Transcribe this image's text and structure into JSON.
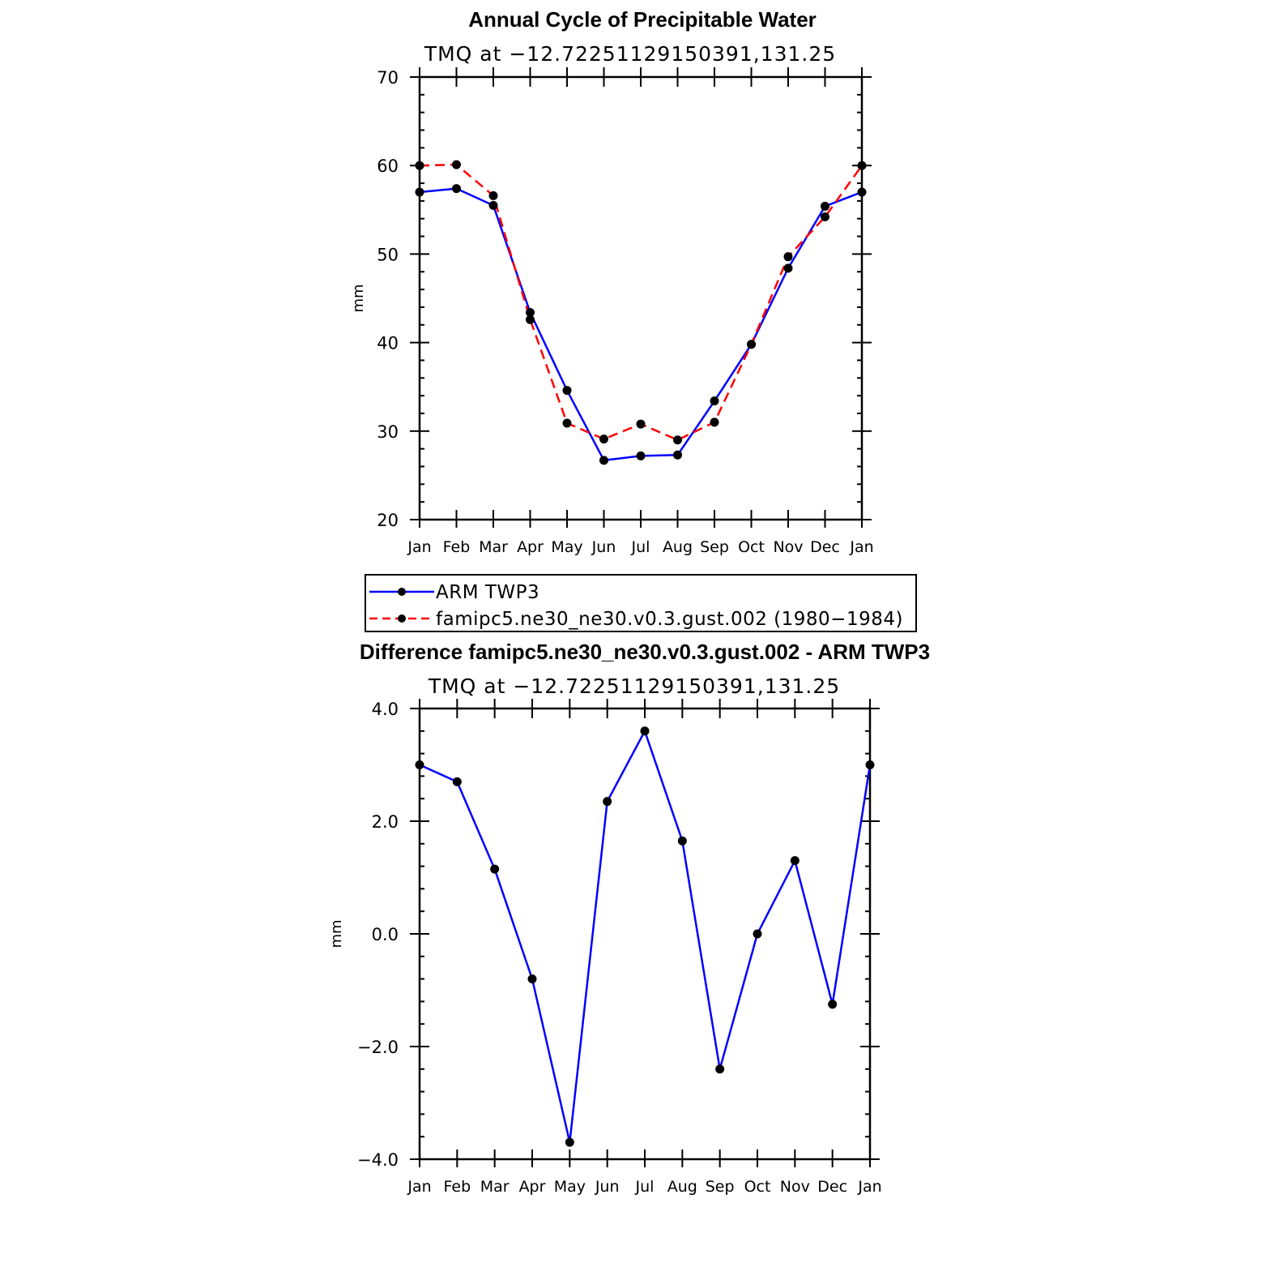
{
  "top": {
    "title": "Annual Cycle of Precipitable Water",
    "subtitle": "TMQ at −12.72251129150391,131.25",
    "ylabel": "mm"
  },
  "bottom": {
    "title": "Difference famipc5.ne30_ne30.v0.3.gust.002 - ARM TWP3",
    "subtitle": "TMQ at −12.72251129150391,131.25",
    "ylabel": "mm"
  },
  "legend": {
    "items": [
      {
        "label": "ARM TWP3",
        "color": "#0000ff",
        "style": "solid"
      },
      {
        "label": "famipc5.ne30_ne30.v0.3.gust.002 (1980−1984)",
        "color": "#ff0000",
        "style": "dashed"
      }
    ]
  },
  "chart_data": [
    {
      "type": "line",
      "title": "Annual Cycle of Precipitable Water",
      "subtitle": "TMQ at −12.72251129150391,131.25",
      "xlabel": "",
      "ylabel": "mm",
      "categories": [
        "Jan",
        "Feb",
        "Mar",
        "Apr",
        "May",
        "Jun",
        "Jul",
        "Aug",
        "Sep",
        "Oct",
        "Nov",
        "Dec",
        "Jan"
      ],
      "ylim": [
        20,
        70
      ],
      "yticks": [
        20,
        30,
        40,
        50,
        60,
        70
      ],
      "ytick_labels": [
        "20",
        "30",
        "40",
        "50",
        "60",
        "70"
      ],
      "legend_position": "below",
      "series": [
        {
          "name": "ARM TWP3",
          "color": "#0000ff",
          "style": "solid",
          "values": [
            57.0,
            57.4,
            55.5,
            43.4,
            34.6,
            26.7,
            27.2,
            27.3,
            33.4,
            39.8,
            48.4,
            55.4,
            57.0
          ]
        },
        {
          "name": "famipc5.ne30_ne30.v0.3.gust.002 (1980−1984)",
          "color": "#ff0000",
          "style": "dashed",
          "values": [
            60.0,
            60.1,
            56.6,
            42.6,
            30.9,
            29.1,
            30.8,
            29.0,
            31.0,
            39.8,
            49.7,
            54.2,
            60.0
          ]
        }
      ]
    },
    {
      "type": "line",
      "title": "Difference famipc5.ne30_ne30.v0.3.gust.002 - ARM TWP3",
      "subtitle": "TMQ at −12.72251129150391,131.25",
      "xlabel": "",
      "ylabel": "mm",
      "categories": [
        "Jan",
        "Feb",
        "Mar",
        "Apr",
        "May",
        "Jun",
        "Jul",
        "Aug",
        "Sep",
        "Oct",
        "Nov",
        "Dec",
        "Jan"
      ],
      "ylim": [
        -4,
        4
      ],
      "yticks": [
        -4,
        -2,
        0,
        2,
        4
      ],
      "ytick_labels": [
        "−4.0",
        "−2.0",
        "0.0",
        "2.0",
        "4.0"
      ],
      "series": [
        {
          "color": "#0000ff",
          "style": "solid",
          "values": [
            3.0,
            2.7,
            1.15,
            -0.8,
            -3.7,
            2.35,
            3.6,
            1.65,
            -2.4,
            0.0,
            1.3,
            -1.25,
            3.0
          ]
        }
      ]
    }
  ]
}
